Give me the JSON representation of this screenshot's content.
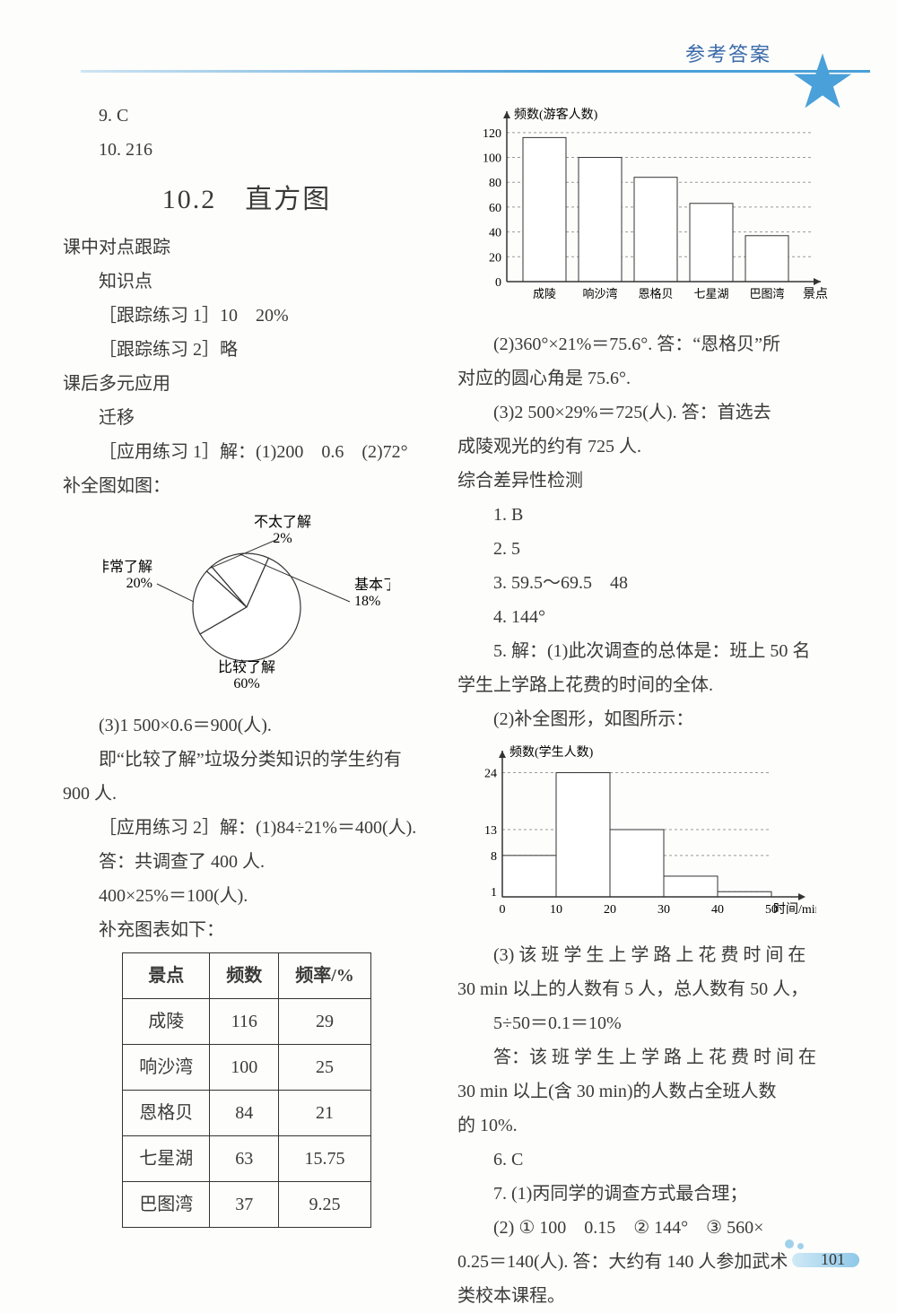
{
  "header": {
    "title": "参考答案"
  },
  "left": {
    "q9": "9. C",
    "q10": "10. 216",
    "section": "10.2　直方图",
    "track_head": "课中对点跟踪",
    "track_knowledge": "知识点",
    "track1": "［跟踪练习 1］10　20%",
    "track2": "［跟踪练习 2］略",
    "after_head": "课后多元应用",
    "after_migrate": "迁移",
    "app1_line": "［应用练习 1］解：(1)200　0.6　(2)72°",
    "app1_fill": "补全图如图：",
    "pie": {
      "labels": [
        "非常了解",
        "比较了解",
        "不太了解",
        "基本了解"
      ],
      "values_text": [
        "20%",
        "60%",
        "2%",
        "18%"
      ],
      "angles": [
        72,
        216,
        7.2,
        64.8
      ],
      "colors": [
        "#ffffff",
        "#ffffff",
        "#ffffff",
        "#ffffff"
      ],
      "stroke": "#333333",
      "radius": 60
    },
    "app1_r3": "(3)1 500×0.6＝900(人).",
    "app1_r3b": "即“比较了解”垃圾分类知识的学生约有",
    "app1_r3c": "900 人.",
    "app2_a": "［应用练习 2］解：(1)84÷21%＝400(人).",
    "app2_b": "答：共调查了 400 人.",
    "app2_c": "400×25%＝100(人).",
    "app2_d": "补充图表如下：",
    "table": {
      "columns": [
        "景点",
        "频数",
        "频率/%"
      ],
      "rows": [
        [
          "成陵",
          "116",
          "29"
        ],
        [
          "响沙湾",
          "100",
          "25"
        ],
        [
          "恩格贝",
          "84",
          "21"
        ],
        [
          "七星湖",
          "63",
          "15.75"
        ],
        [
          "巴图湾",
          "37",
          "9.25"
        ]
      ]
    }
  },
  "right": {
    "histo1": {
      "ylabel": "频数(游客人数)",
      "xlabel": "景点",
      "categories": [
        "成陵",
        "响沙湾",
        "恩格贝",
        "七星湖",
        "巴图湾"
      ],
      "values": [
        116,
        100,
        84,
        63,
        37
      ],
      "yticks": [
        0,
        20,
        40,
        60,
        80,
        100,
        120
      ],
      "ymax": 130,
      "bar_fill": "#ffffff",
      "bar_stroke": "#333333",
      "grid_color": "#999999"
    },
    "r2": "(2)360°×21%＝75.6°. 答：“恩格贝”所",
    "r2b": "对应的圆心角是 75.6°.",
    "r3": "(3)2 500×29%＝725(人). 答：首选去",
    "r3b": "成陵观光的约有 725 人.",
    "diff_head": "综合差异性检测",
    "d1": "1. B",
    "d2": "2. 5",
    "d3": "3. 59.5～69.5　48",
    "d4": "4. 144°",
    "d5a": "5. 解：(1)此次调查的总体是：班上 50 名",
    "d5b": "学生上学路上花费的时间的全体.",
    "d5c": "(2)补全图形，如图所示：",
    "histo2": {
      "ylabel": "频数(学生人数)",
      "xlabel": "时间/min",
      "xticks": [
        0,
        10,
        20,
        30,
        40,
        50
      ],
      "bars": [
        {
          "x0": 0,
          "x1": 10,
          "y": 8
        },
        {
          "x0": 10,
          "x1": 20,
          "y": 24
        },
        {
          "x0": 20,
          "x1": 30,
          "y": 13
        },
        {
          "x0": 30,
          "x1": 40,
          "y": 4
        },
        {
          "x0": 40,
          "x1": 50,
          "y": 1
        }
      ],
      "ylabels": [
        1,
        8,
        13,
        24
      ],
      "ymax": 26,
      "bar_fill": "#ffffff",
      "bar_stroke": "#333333",
      "grid_color": "#999999"
    },
    "d5d": "(3) 该 班 学 生 上 学 路 上 花 费 时 间 在",
    "d5e": "30 min 以上的人数有 5 人，总人数有 50 人，",
    "d5f": "5÷50＝0.1＝10%",
    "d5g": "答：该 班 学 生 上 学 路 上 花 费 时 间 在",
    "d5h": "30 min 以上(含 30 min)的人数占全班人数",
    "d5i": "的 10%.",
    "d6": "6. C",
    "d7a": "7. (1)丙同学的调查方式最合理；",
    "d7b": "(2) ① 100　0.15　② 144°　③ 560×",
    "d7c": "0.25＝140(人). 答：大约有 140 人参加武术",
    "d7d": "类校本课程。"
  },
  "pagenum": "101"
}
